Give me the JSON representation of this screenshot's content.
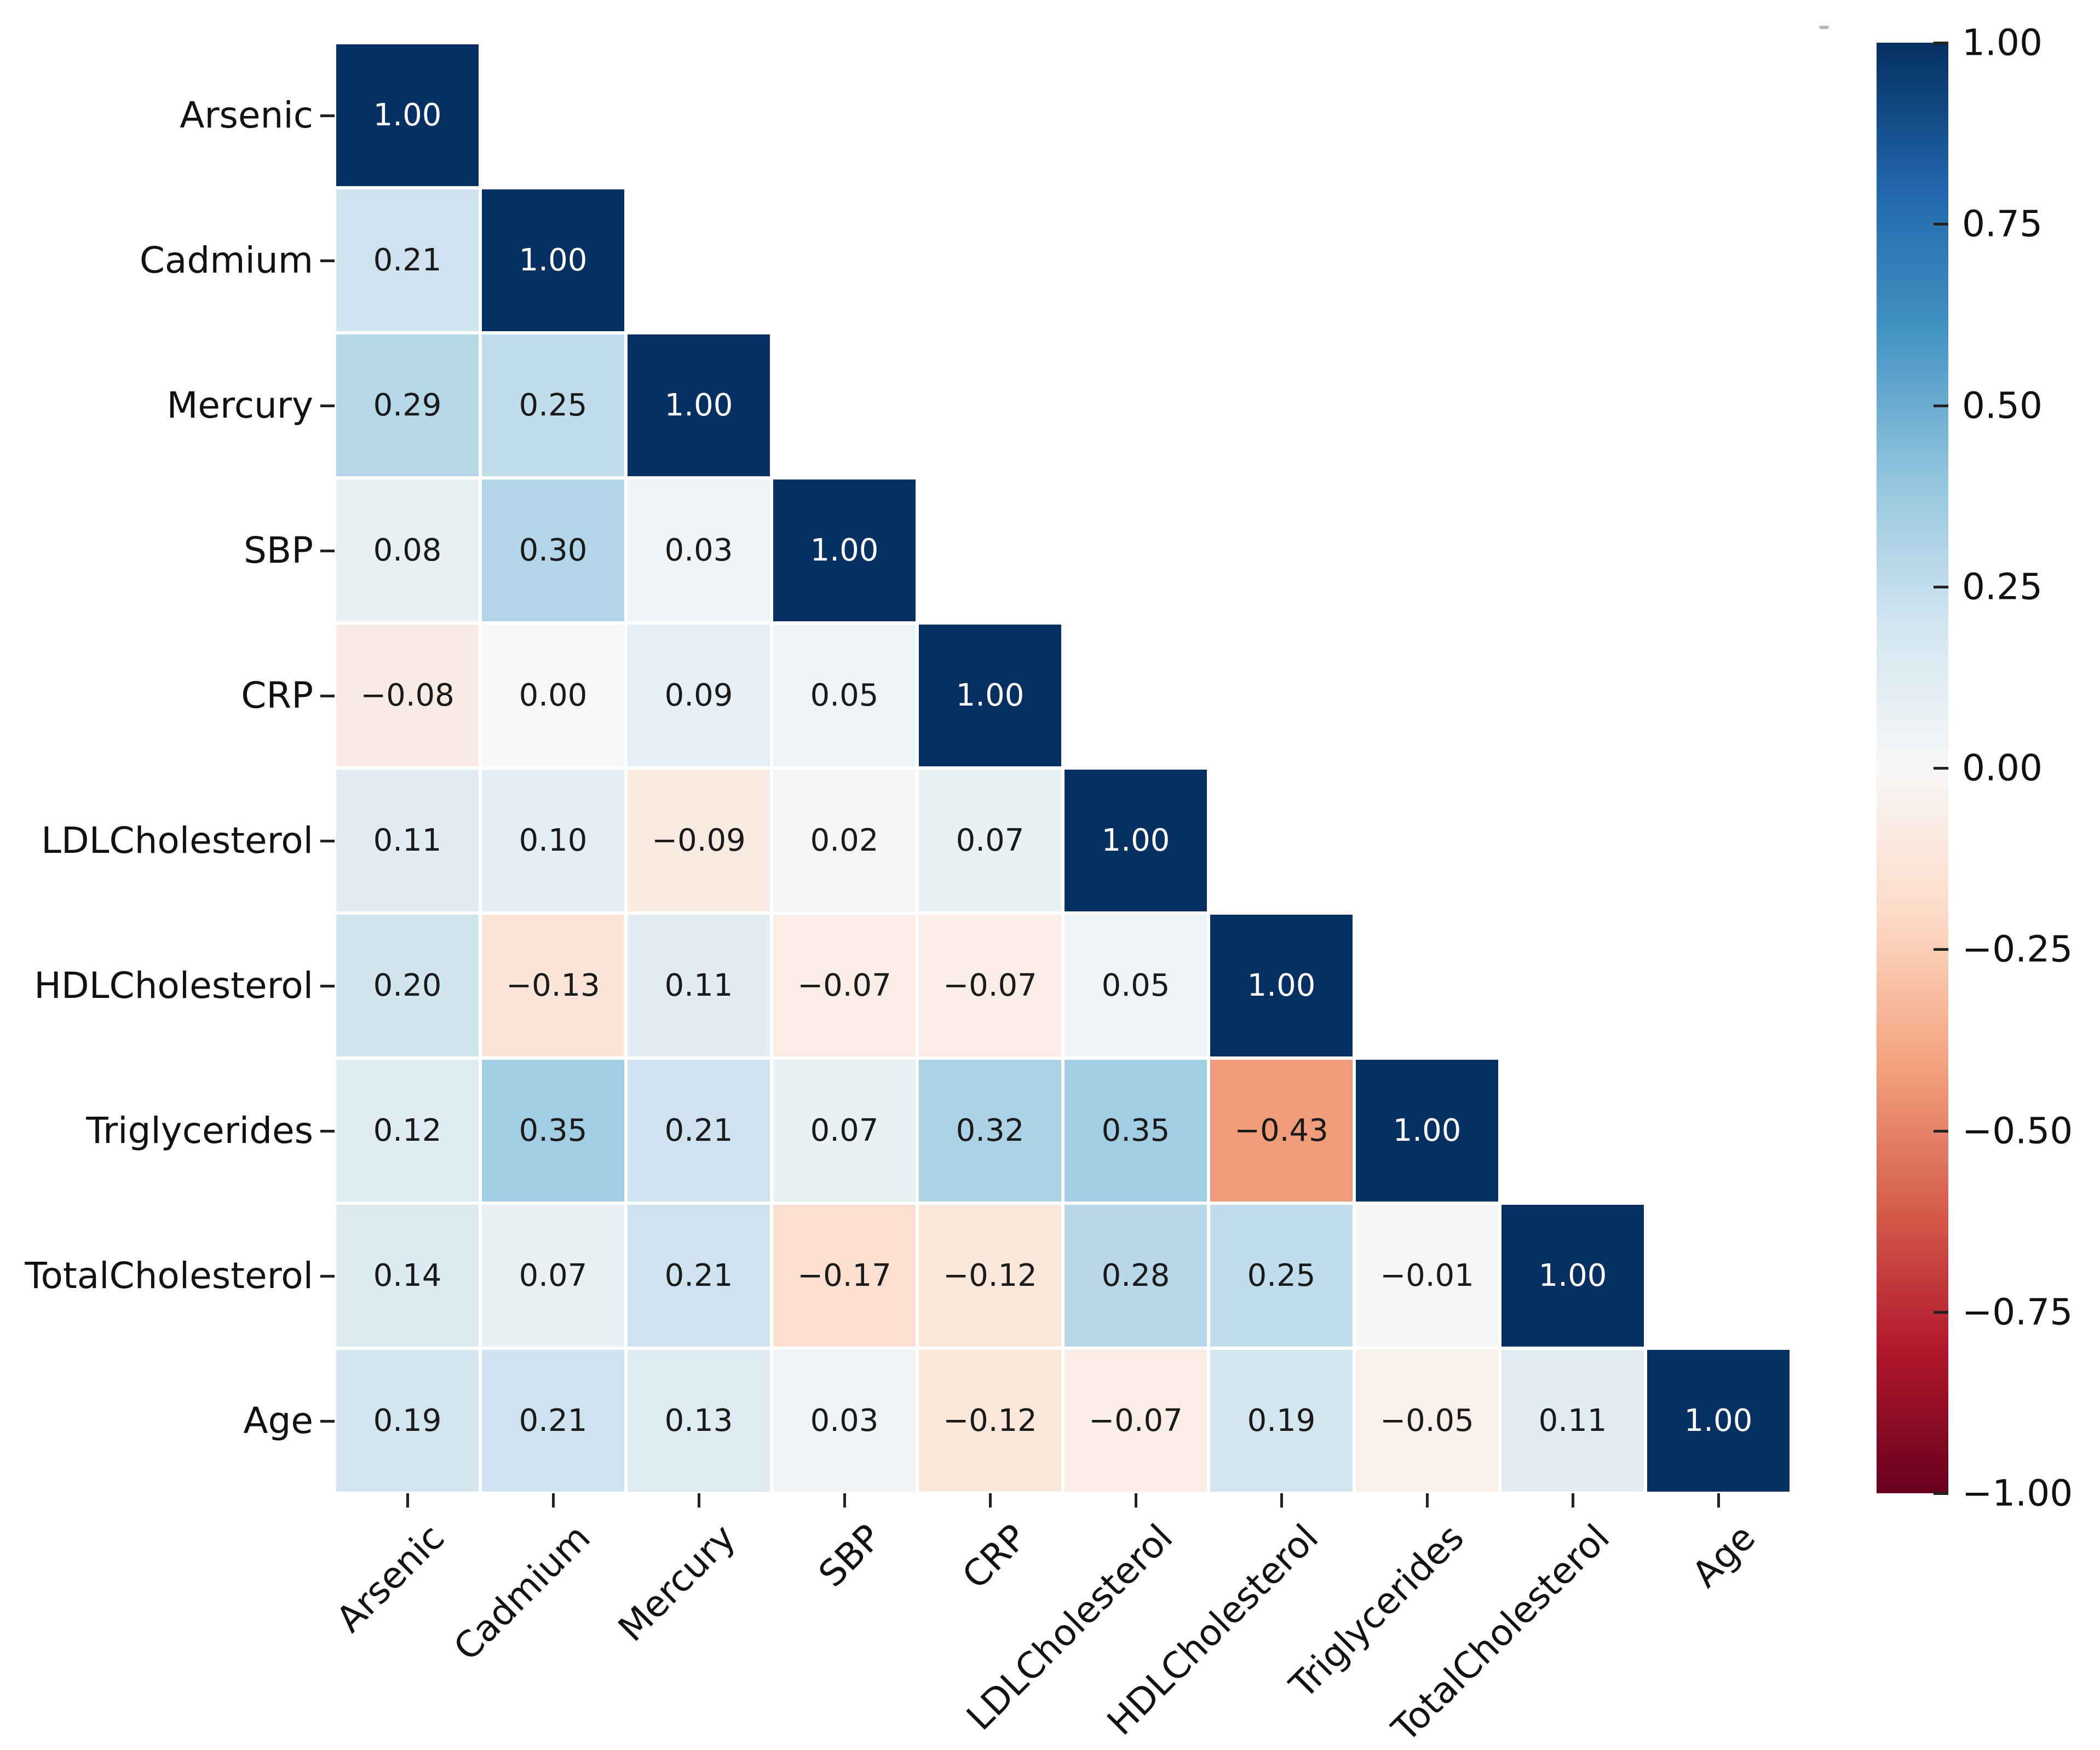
{
  "chart_data": {
    "type": "heatmap",
    "title": "",
    "description": "Lower-triangular Pearson correlation matrix heatmap",
    "variables": [
      "Arsenic",
      "Cadmium",
      "Mercury",
      "SBP",
      "CRP",
      "LDLCholesterol",
      "HDLCholesterol",
      "Triglycerides",
      "TotalCholesterol",
      "Age"
    ],
    "matrix_lower_triangle": [
      [
        1.0
      ],
      [
        0.21,
        1.0
      ],
      [
        0.29,
        0.25,
        1.0
      ],
      [
        0.08,
        0.3,
        0.03,
        1.0
      ],
      [
        -0.08,
        0.0,
        0.09,
        0.05,
        1.0
      ],
      [
        0.11,
        0.1,
        -0.09,
        0.02,
        0.07,
        1.0
      ],
      [
        0.2,
        -0.13,
        0.11,
        -0.07,
        -0.07,
        0.05,
        1.0
      ],
      [
        0.12,
        0.35,
        0.21,
        0.07,
        0.32,
        0.35,
        -0.43,
        1.0
      ],
      [
        0.14,
        0.07,
        0.21,
        -0.17,
        -0.12,
        0.28,
        0.25,
        -0.01,
        1.0
      ],
      [
        0.19,
        0.21,
        0.13,
        0.03,
        -0.12,
        -0.07,
        0.19,
        -0.05,
        0.11,
        1.0
      ]
    ],
    "mask": "upper triangle hidden",
    "annotation_decimals": 2,
    "value_range": [
      -1,
      1
    ],
    "colormap": {
      "name": "RdBu",
      "anchors": [
        "#67001f",
        "#b2182b",
        "#d6604d",
        "#f4a582",
        "#fddbc7",
        "#f7f7f7",
        "#d1e5f0",
        "#92c5de",
        "#4393c3",
        "#2166ac",
        "#053061"
      ]
    },
    "colorbar": {
      "position": "right",
      "tick_labels": [
        "1.00",
        "0.75",
        "0.50",
        "0.25",
        "0.00",
        "−0.25",
        "−0.50",
        "−0.75",
        "−1.00"
      ]
    },
    "legend": "none",
    "grid": false,
    "layout_hints": {
      "x_tick_rotation_deg": 45,
      "annotation_text_dark": "#1a1a1a",
      "annotation_text_light": "#ffffff",
      "background": "#ffffff"
    }
  }
}
